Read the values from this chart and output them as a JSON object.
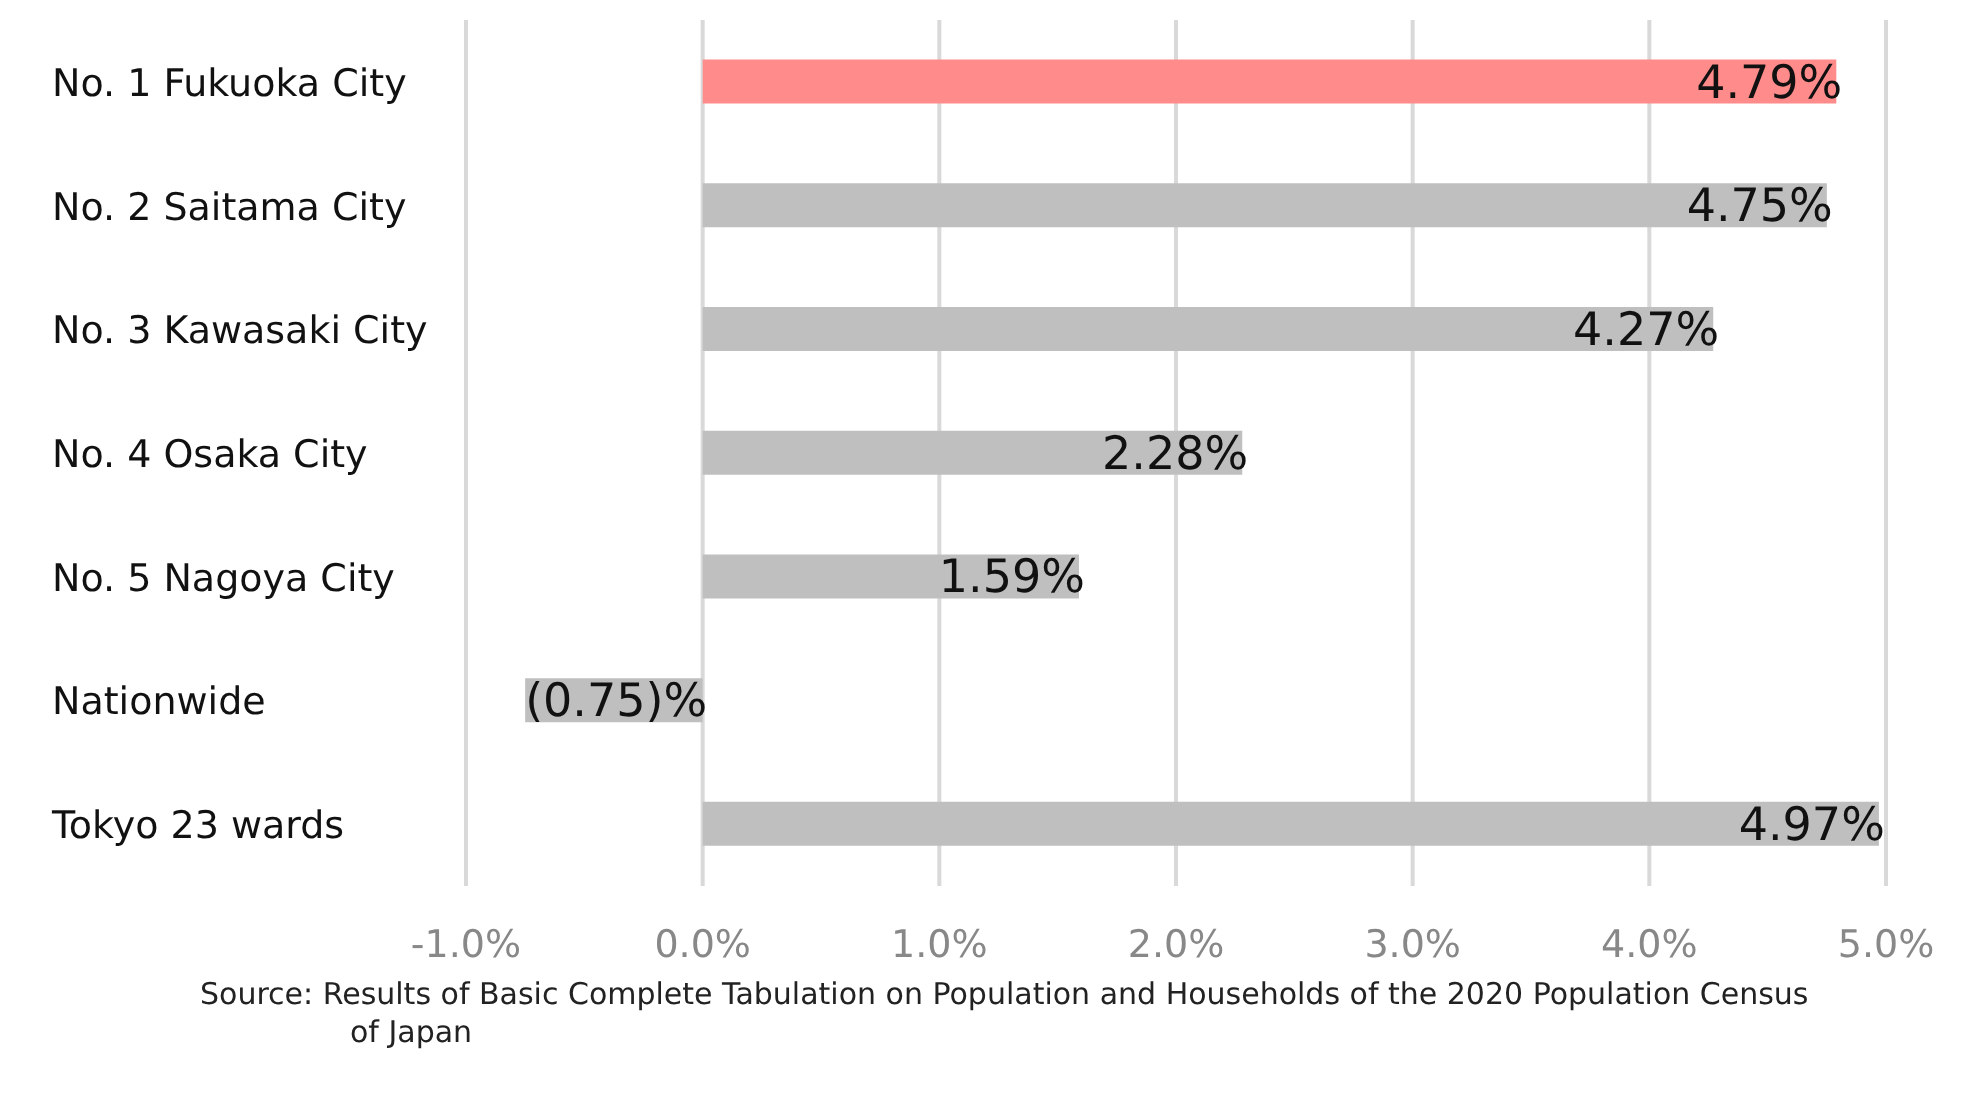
{
  "chart_data": {
    "type": "bar",
    "orientation": "horizontal",
    "categories": [
      "No. 1 Fukuoka City",
      "No. 2 Saitama City",
      "No. 3 Kawasaki City",
      "No. 4 Osaka City",
      "No. 5 Nagoya City",
      "Nationwide",
      "Tokyo 23 wards"
    ],
    "values": [
      4.79,
      4.75,
      4.27,
      2.28,
      1.59,
      -0.75,
      4.97
    ],
    "colors": [
      "#ff8b8b",
      "#bfbfbf",
      "#bfbfbf",
      "#bfbfbf",
      "#bfbfbf",
      "#bfbfbf",
      "#bfbfbf"
    ],
    "value_labels": [
      "4.79%",
      "4.75%",
      "4.27%",
      "2.28%",
      "1.59%",
      "(0.75)%",
      "4.97%"
    ],
    "xlim": [
      -1,
      5
    ],
    "xticks": [
      {
        "value": -1,
        "label": "-1.0%"
      },
      {
        "value": 0,
        "label": "0.0%"
      },
      {
        "value": 1,
        "label": "1.0%"
      },
      {
        "value": 2,
        "label": "2.0%"
      },
      {
        "value": 3,
        "label": "3.0%"
      },
      {
        "value": 4,
        "label": "4.0%"
      },
      {
        "value": 5,
        "label": "5.0%"
      }
    ],
    "grid": "x",
    "annotations": [
      "Source: Results of Basic Complete Tabulation on Population and Households of the 2020 Population Census of Japan"
    ]
  }
}
